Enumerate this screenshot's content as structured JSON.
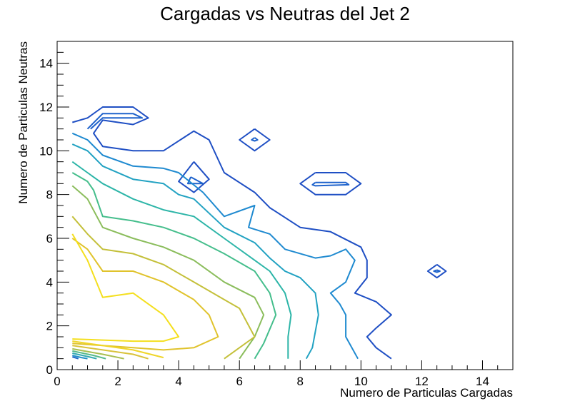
{
  "chart_data": {
    "type": "contour",
    "title": "Cargadas vs Neutras del Jet 2",
    "xlabel": "Numero de Particulas Cargadas",
    "ylabel": "Numero de Particulas Neutras",
    "xlim": [
      0,
      15
    ],
    "ylim": [
      0,
      15
    ],
    "x_ticks": [
      0,
      2,
      4,
      6,
      8,
      10,
      12,
      14
    ],
    "y_ticks": [
      0,
      2,
      4,
      6,
      8,
      10,
      12,
      14
    ],
    "x_tick_labels": [
      "0",
      "2",
      "4",
      "6",
      "8",
      "10",
      "12",
      "14"
    ],
    "y_tick_labels": [
      "0",
      "2",
      "4",
      "6",
      "8",
      "10",
      "12",
      "14"
    ],
    "grid": false,
    "legend": "none",
    "contours": [
      {
        "color": "#1f4fc4",
        "paths": [
          [
            [
              0.5,
              11.3
            ],
            [
              1.0,
              11.5
            ],
            [
              1.5,
              12.0
            ],
            [
              2.5,
              12.0
            ],
            [
              3.0,
              11.5
            ],
            [
              2.5,
              11.2
            ],
            [
              1.5,
              11.4
            ],
            [
              1.2,
              10.8
            ],
            [
              1.5,
              10.2
            ],
            [
              2.5,
              10.0
            ],
            [
              3.5,
              10.0
            ],
            [
              4.5,
              10.9
            ],
            [
              5.0,
              10.5
            ],
            [
              5.5,
              9.0
            ],
            [
              6.5,
              8.1
            ],
            [
              7.0,
              7.4
            ],
            [
              8.0,
              6.5
            ],
            [
              9.0,
              6.3
            ],
            [
              10.0,
              5.6
            ],
            [
              10.2,
              5.0
            ],
            [
              10.2,
              4.2
            ],
            [
              9.8,
              3.5
            ],
            [
              10.5,
              3.1
            ],
            [
              11.0,
              2.5
            ],
            [
              10.5,
              1.9
            ],
            [
              10.2,
              1.5
            ],
            [
              10.5,
              1.0
            ],
            [
              11.0,
              0.5
            ]
          ],
          [
            [
              6.5,
              11.0
            ],
            [
              7.0,
              10.5
            ],
            [
              6.5,
              10.0
            ],
            [
              6.0,
              10.5
            ],
            [
              6.5,
              11.0
            ]
          ],
          [
            [
              8.5,
              9.0
            ],
            [
              9.5,
              9.0
            ],
            [
              10.0,
              8.5
            ],
            [
              9.5,
              8.0
            ],
            [
              8.5,
              8.0
            ],
            [
              8.0,
              8.5
            ],
            [
              8.5,
              9.0
            ]
          ],
          [
            [
              12.5,
              4.8
            ],
            [
              12.8,
              4.5
            ],
            [
              12.5,
              4.2
            ],
            [
              12.2,
              4.5
            ],
            [
              12.5,
              4.8
            ]
          ],
          [
            [
              4.5,
              9.5
            ],
            [
              5.0,
              8.7
            ],
            [
              4.5,
              8.1
            ],
            [
              4.0,
              8.6
            ],
            [
              4.5,
              9.5
            ]
          ]
        ]
      },
      {
        "color": "#1f63cc",
        "paths": [
          [
            [
              1.0,
              11.0
            ],
            [
              1.5,
              11.7
            ],
            [
              2.5,
              11.7
            ],
            [
              2.8,
              11.5
            ],
            [
              1.5,
              11.5
            ],
            [
              1.1,
              11.0
            ]
          ],
          [
            [
              6.5,
              10.6
            ],
            [
              6.6,
              10.5
            ],
            [
              6.5,
              10.45
            ],
            [
              6.4,
              10.5
            ],
            [
              6.5,
              10.6
            ]
          ],
          [
            [
              8.5,
              8.55
            ],
            [
              9.5,
              8.55
            ],
            [
              9.6,
              8.45
            ],
            [
              8.5,
              8.4
            ],
            [
              8.4,
              8.45
            ],
            [
              8.5,
              8.55
            ]
          ],
          [
            [
              12.5,
              4.55
            ],
            [
              12.6,
              4.5
            ],
            [
              12.5,
              4.45
            ],
            [
              12.4,
              4.5
            ],
            [
              12.5,
              4.55
            ]
          ],
          [
            [
              4.4,
              8.8
            ],
            [
              4.8,
              8.5
            ],
            [
              4.3,
              8.5
            ],
            [
              4.4,
              8.8
            ]
          ]
        ]
      },
      {
        "color": "#1f8ad0",
        "paths": [
          [
            [
              0.5,
              10.8
            ],
            [
              1.0,
              10.5
            ],
            [
              1.5,
              9.8
            ],
            [
              2.5,
              9.3
            ],
            [
              3.5,
              9.2
            ],
            [
              4.0,
              9.0
            ],
            [
              4.8,
              8.1
            ],
            [
              5.5,
              7.0
            ],
            [
              6.5,
              7.5
            ],
            [
              6.3,
              6.5
            ],
            [
              7.0,
              6.2
            ],
            [
              7.5,
              5.5
            ],
            [
              8.5,
              5.1
            ],
            [
              9.0,
              5.2
            ],
            [
              9.5,
              5.5
            ],
            [
              9.8,
              5.0
            ],
            [
              9.5,
              4.0
            ],
            [
              9.0,
              3.5
            ],
            [
              9.3,
              3.0
            ],
            [
              9.5,
              2.5
            ],
            [
              9.5,
              1.5
            ],
            [
              9.9,
              0.5
            ]
          ]
        ]
      },
      {
        "color": "#22a2c2",
        "paths": [
          [
            [
              0.5,
              10.3
            ],
            [
              1.0,
              10.0
            ],
            [
              1.5,
              9.3
            ],
            [
              2.5,
              8.7
            ],
            [
              3.5,
              8.5
            ],
            [
              4.0,
              8.0
            ],
            [
              4.5,
              7.8
            ],
            [
              5.5,
              6.5
            ],
            [
              6.5,
              5.8
            ],
            [
              7.0,
              5.1
            ],
            [
              7.5,
              4.5
            ],
            [
              8.0,
              4.2
            ],
            [
              8.5,
              3.5
            ],
            [
              8.6,
              2.5
            ],
            [
              8.4,
              1.0
            ],
            [
              8.2,
              0.5
            ]
          ]
        ]
      },
      {
        "color": "#2db5a8",
        "paths": [
          [
            [
              0.5,
              9.5
            ],
            [
              1.0,
              9.0
            ],
            [
              1.5,
              8.5
            ],
            [
              2.5,
              7.8
            ],
            [
              3.5,
              7.3
            ],
            [
              4.5,
              7.0
            ],
            [
              5.5,
              6.0
            ],
            [
              6.5,
              5.0
            ],
            [
              7.0,
              4.5
            ],
            [
              7.5,
              3.5
            ],
            [
              7.7,
              2.5
            ],
            [
              7.6,
              1.5
            ],
            [
              7.6,
              0.5
            ]
          ]
        ]
      },
      {
        "color": "#45be8c",
        "paths": [
          [
            [
              0.5,
              9.0
            ],
            [
              1.0,
              8.6
            ],
            [
              1.2,
              8.2
            ],
            [
              1.5,
              7.0
            ],
            [
              2.5,
              6.8
            ],
            [
              3.5,
              6.5
            ],
            [
              4.5,
              6.0
            ],
            [
              5.5,
              5.3
            ],
            [
              6.5,
              4.5
            ],
            [
              7.0,
              3.5
            ],
            [
              7.2,
              2.5
            ],
            [
              6.8,
              1.2
            ],
            [
              6.5,
              0.5
            ]
          ]
        ]
      },
      {
        "color": "#8bbd5c",
        "paths": [
          [
            [
              0.5,
              8.4
            ],
            [
              1.0,
              7.8
            ],
            [
              1.5,
              6.5
            ],
            [
              2.5,
              6.0
            ],
            [
              3.5,
              5.6
            ],
            [
              4.5,
              5.0
            ],
            [
              5.5,
              4.0
            ],
            [
              6.5,
              3.3
            ],
            [
              6.8,
              2.5
            ],
            [
              6.5,
              1.5
            ],
            [
              6.0,
              0.5
            ]
          ]
        ]
      },
      {
        "color": "#c4c03a",
        "paths": [
          [
            [
              0.5,
              7.0
            ],
            [
              1.0,
              6.2
            ],
            [
              1.5,
              5.5
            ],
            [
              2.5,
              5.3
            ],
            [
              3.5,
              4.8
            ],
            [
              4.5,
              4.0
            ],
            [
              5.5,
              3.2
            ],
            [
              6.0,
              2.8
            ],
            [
              6.5,
              1.5
            ],
            [
              6.2,
              1.2
            ],
            [
              5.5,
              0.5
            ]
          ]
        ]
      },
      {
        "color": "#e0c32c",
        "paths": [
          [
            [
              0.5,
              6.0
            ],
            [
              1.0,
              5.5
            ],
            [
              1.5,
              4.5
            ],
            [
              2.5,
              4.5
            ],
            [
              3.5,
              4.0
            ],
            [
              4.5,
              3.2
            ],
            [
              5.0,
              2.5
            ],
            [
              5.3,
              1.5
            ],
            [
              4.5,
              1.0
            ],
            [
              3.5,
              0.9
            ],
            [
              2.5,
              1.0
            ],
            [
              1.5,
              1.1
            ],
            [
              0.5,
              1.2
            ]
          ]
        ]
      },
      {
        "color": "#f4df1e",
        "paths": [
          [
            [
              0.5,
              6.2
            ],
            [
              1.0,
              5.0
            ],
            [
              1.5,
              3.3
            ],
            [
              2.5,
              3.5
            ],
            [
              3.5,
              2.5
            ],
            [
              4.0,
              1.5
            ],
            [
              3.5,
              1.3
            ],
            [
              2.5,
              1.3
            ],
            [
              1.5,
              1.35
            ],
            [
              0.5,
              1.4
            ]
          ]
        ]
      },
      {
        "color": "#efd528",
        "paths": [
          [
            [
              0.5,
              1.3
            ],
            [
              1.5,
              1.1
            ],
            [
              2.5,
              0.9
            ],
            [
              3.5,
              0.55
            ]
          ]
        ]
      },
      {
        "color": "#d9c23a",
        "paths": [
          [
            [
              0.5,
              1.1
            ],
            [
              1.5,
              0.9
            ],
            [
              2.5,
              0.7
            ],
            [
              3.0,
              0.5
            ]
          ]
        ]
      },
      {
        "color": "#a8be50",
        "paths": [
          [
            [
              0.5,
              0.95
            ],
            [
              1.5,
              0.7
            ],
            [
              2.2,
              0.5
            ]
          ]
        ]
      },
      {
        "color": "#55b98a",
        "paths": [
          [
            [
              0.5,
              0.85
            ],
            [
              1.2,
              0.65
            ],
            [
              1.6,
              0.5
            ]
          ]
        ]
      },
      {
        "color": "#33aab0",
        "paths": [
          [
            [
              0.5,
              0.75
            ],
            [
              1.0,
              0.6
            ],
            [
              1.3,
              0.5
            ]
          ]
        ]
      },
      {
        "color": "#2290c6",
        "paths": [
          [
            [
              0.5,
              0.65
            ],
            [
              0.8,
              0.55
            ],
            [
              1.0,
              0.5
            ]
          ]
        ]
      },
      {
        "color": "#1f66c8",
        "paths": [
          [
            [
              0.5,
              0.58
            ],
            [
              0.7,
              0.5
            ]
          ]
        ]
      }
    ]
  }
}
